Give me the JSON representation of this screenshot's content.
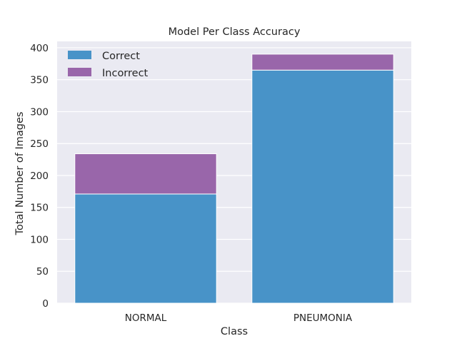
{
  "chart_data": {
    "type": "bar",
    "stacked": true,
    "title": "Model Per Class Accuracy",
    "xlabel": "Class",
    "ylabel": "Total Number of Images",
    "categories": [
      "NORMAL",
      "PNEUMONIA"
    ],
    "series": [
      {
        "name": "Correct",
        "values": [
          171,
          365
        ],
        "color": "#4893c8"
      },
      {
        "name": "Incorrect",
        "values": [
          63,
          25
        ],
        "color": "#9966aa"
      }
    ],
    "ylim": [
      0,
      410
    ],
    "yticks": [
      0,
      50,
      100,
      150,
      200,
      250,
      300,
      350,
      400
    ],
    "grid": true,
    "legend_position": "top-left",
    "colors": {
      "plot_background": "#eaeaf2",
      "grid": "#ffffff"
    }
  }
}
